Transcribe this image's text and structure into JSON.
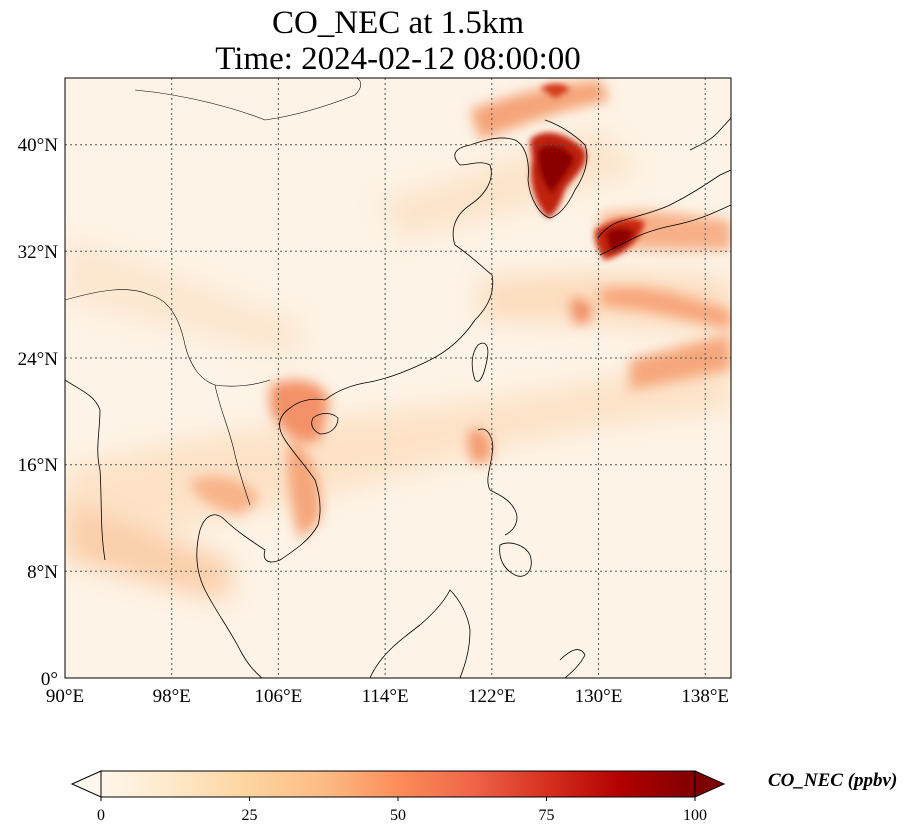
{
  "title": {
    "line1": "CO_NEC at 1.5km",
    "line2": "Time: 2024-02-12 08:00:00"
  },
  "map": {
    "lon_range": [
      90,
      139
    ],
    "lat_range": [
      0,
      45
    ],
    "lon_ticks": [
      "90°E",
      "98°E",
      "106°E",
      "114°E",
      "122°E",
      "130°E",
      "138°E"
    ],
    "lat_ticks": [
      "0°",
      "8°N",
      "16°N",
      "24°N",
      "32°N",
      "40°N"
    ],
    "gridlines": true,
    "colormap": "OrRd",
    "hotspots": [
      "Korean Peninsula",
      "Southern Japan",
      "Northern Vietnam",
      "Taiwan"
    ]
  },
  "colorbar": {
    "min": 0,
    "max": 100,
    "ticks": [
      "0",
      "25",
      "50",
      "75",
      "100"
    ],
    "label": "CO_NEC (ppbv)",
    "extend": "both",
    "colors": [
      "#fff7ec",
      "#fee8c8",
      "#fdd49e",
      "#fdbb84",
      "#fc8d59",
      "#ef6548",
      "#d7301f",
      "#b30000",
      "#7f0000"
    ]
  }
}
